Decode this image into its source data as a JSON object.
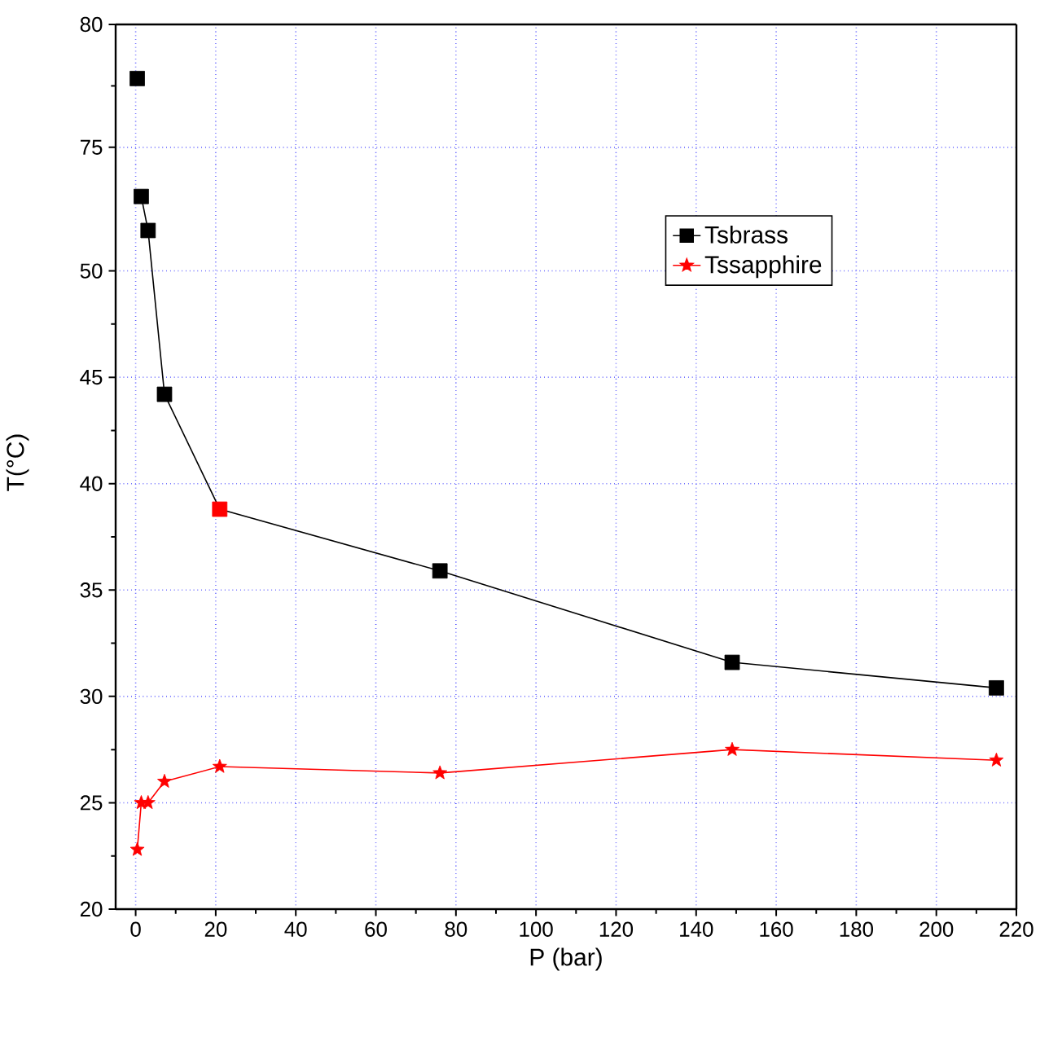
{
  "chart_data": [
    {
      "type": "line",
      "tick_labels": "y",
      "xlim": [
        -5,
        220
      ],
      "xticks": [
        0,
        20,
        40,
        60,
        80,
        100,
        120,
        140,
        160,
        180,
        200,
        220
      ],
      "ylim": [
        74.3,
        80
      ],
      "yticks": [
        75,
        80
      ],
      "x": [
        0.4
      ],
      "grid": true,
      "line_style": "solid",
      "series": [
        {
          "color": "#000000",
          "marker": "square",
          "values": [
            77.8
          ]
        }
      ]
    },
    {
      "type": "line",
      "xlabel": "P (bar)",
      "ylabel": "T(°C)",
      "xlim": [
        -5,
        220
      ],
      "xticks": [
        0,
        20,
        40,
        60,
        80,
        100,
        120,
        140,
        160,
        180,
        200,
        220
      ],
      "ylim": [
        20,
        55
      ],
      "yticks": [
        20,
        25,
        30,
        35,
        40,
        45,
        50
      ],
      "x": [
        0.4,
        1.4,
        3.1,
        7.2,
        21,
        76,
        149,
        215
      ],
      "grid": true,
      "legend": "top right",
      "line_style": "solid",
      "series": [
        {
          "name": "Tsbrass",
          "color": "#000000",
          "marker": "square",
          "values": [
            null,
            53.5,
            51.9,
            44.2,
            38.8,
            35.9,
            31.6,
            30.4
          ],
          "colors": [
            "#000000",
            "#000000",
            "#000000",
            "#000000",
            "#ff0000",
            "#000000",
            "#000000",
            "#000000"
          ]
        },
        {
          "name": "Tssapphire",
          "color": "#ff0000",
          "marker": "star",
          "values": [
            22.8,
            25.0,
            25.0,
            26.0,
            26.7,
            26.4,
            27.5,
            27.0
          ]
        }
      ]
    }
  ]
}
